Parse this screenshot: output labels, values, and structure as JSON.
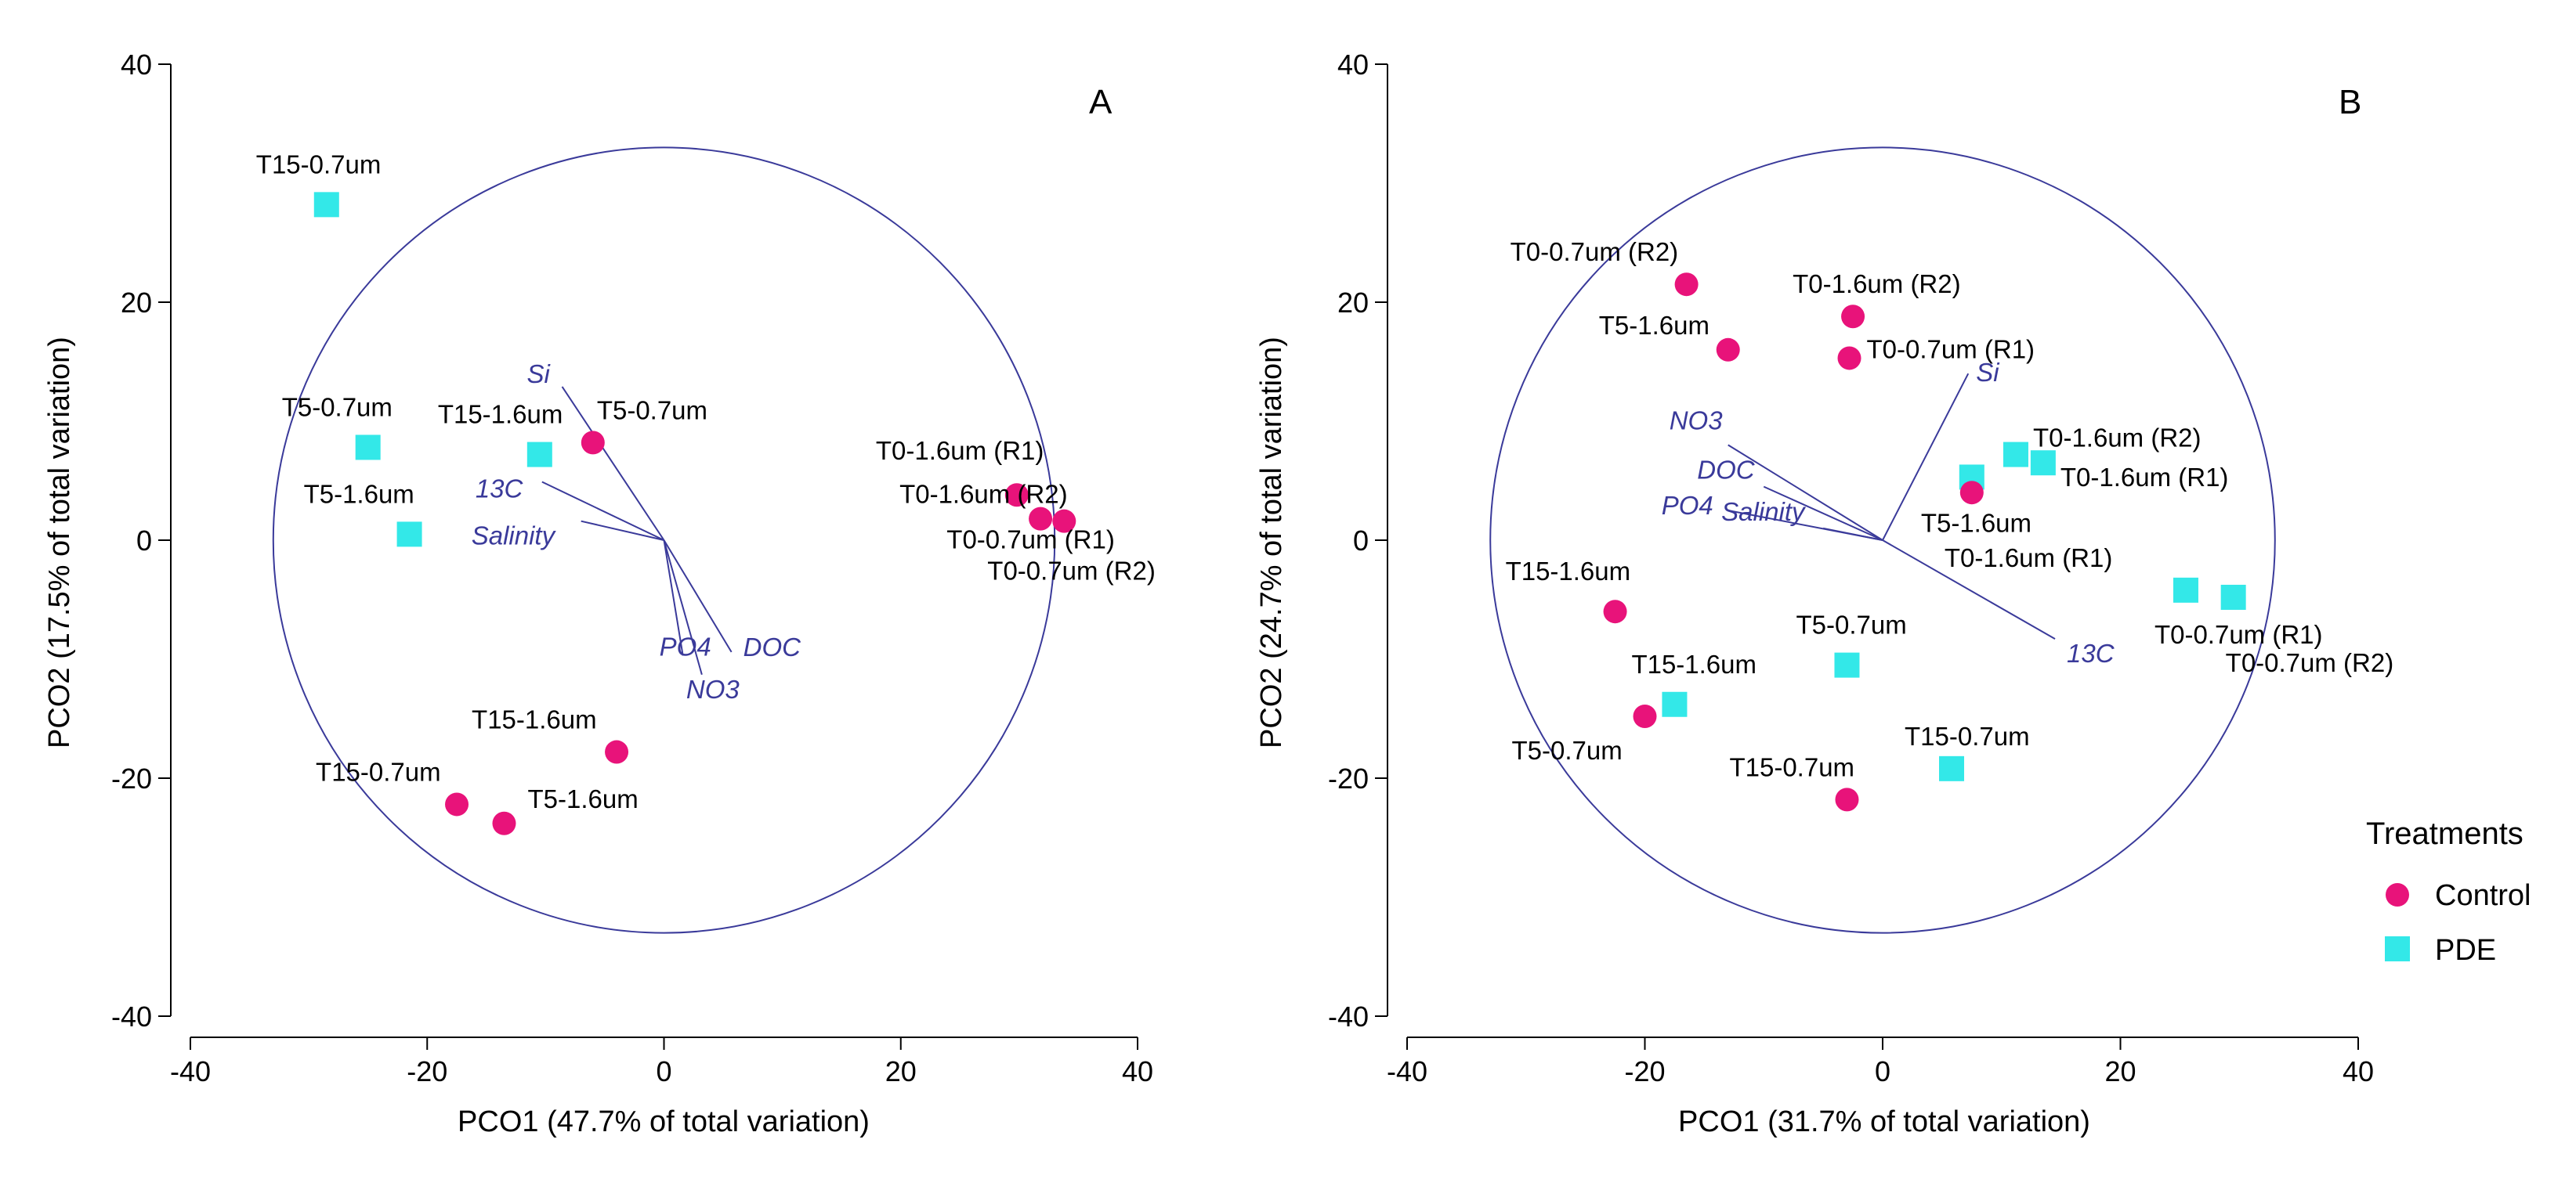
{
  "colors": {
    "control": "#e8137a",
    "pde": "#33e8e8",
    "vector": "#3a3a9a",
    "circle": "#3a3a9a"
  },
  "legend": {
    "title": "Treatments",
    "items": [
      {
        "label": "Control",
        "shape": "circle",
        "color": "#e8137a"
      },
      {
        "label": "PDE",
        "shape": "square",
        "color": "#33e8e8"
      }
    ]
  },
  "chart_data": [
    {
      "type": "scatter",
      "panel_label": "A",
      "xlabel": "PCO1 (47.7% of total variation)",
      "ylabel": "PCO2 (17.5% of total variation)",
      "xlim": [
        -40,
        40
      ],
      "ylim": [
        -40,
        40
      ],
      "xticks": [
        -40,
        -20,
        0,
        20,
        40
      ],
      "yticks": [
        -40,
        -20,
        0,
        20,
        40
      ],
      "circle_radius": 33,
      "points": [
        {
          "label": "T15-0.7um",
          "x": -28.5,
          "y": 28.2,
          "group": "PDE"
        },
        {
          "label": "T5-0.7um",
          "x": -25,
          "y": 7.8,
          "group": "PDE"
        },
        {
          "label": "T5-1.6um",
          "x": -21.5,
          "y": 0.5,
          "group": "PDE"
        },
        {
          "label": "T15-1.6um",
          "x": -10.5,
          "y": 7.2,
          "group": "PDE"
        },
        {
          "label": "T5-0.7um",
          "x": -6,
          "y": 8.2,
          "group": "Control"
        },
        {
          "label": "T0-1.6um (R1)",
          "x": 29.8,
          "y": 3.8,
          "group": "Control"
        },
        {
          "label": "T0-1.6um (R2)",
          "x": 31.8,
          "y": 1.8,
          "group": "Control"
        },
        {
          "label": "T0-0.7um (R1)",
          "x": 33.8,
          "y": 1.6,
          "group": "Control"
        },
        {
          "label": "T0-0.7um (R2)",
          "x": 33.8,
          "y": 1.6,
          "group": "Control",
          "hidden_marker": true
        },
        {
          "label": "T15-1.6um",
          "x": -4,
          "y": -17.8,
          "group": "Control"
        },
        {
          "label": "T15-0.7um",
          "x": -17.5,
          "y": -22.2,
          "group": "Control"
        },
        {
          "label": "T5-1.6um",
          "x": -13.5,
          "y": -23.8,
          "group": "Control"
        }
      ],
      "vectors": [
        {
          "label": "Si",
          "x": -8.6,
          "y": 12.9
        },
        {
          "label": "13C",
          "x": -10.3,
          "y": 4.9
        },
        {
          "label": "Salinity",
          "x": -7,
          "y": 1.6
        },
        {
          "label": "DOC",
          "x": 5.7,
          "y": -9.4
        },
        {
          "label": "NO3",
          "x": 3.2,
          "y": -11.3
        },
        {
          "label": "PO4",
          "x": 1.6,
          "y": -9.7
        }
      ]
    },
    {
      "type": "scatter",
      "panel_label": "B",
      "xlabel": "PCO1 (31.7% of total variation)",
      "ylabel": "PCO2 (24.7% of total variation)",
      "xlim": [
        -40,
        40
      ],
      "ylim": [
        -40,
        40
      ],
      "xticks": [
        -40,
        -20,
        0,
        20,
        40
      ],
      "yticks": [
        -40,
        -20,
        0,
        20,
        40
      ],
      "circle_radius": 33,
      "points": [
        {
          "label": "T0-0.7um (R2)",
          "x": -16.5,
          "y": 21.5,
          "group": "Control"
        },
        {
          "label": "T5-1.6um",
          "x": -13,
          "y": 16,
          "group": "Control"
        },
        {
          "label": "T0-1.6um (R2)",
          "x": -2.5,
          "y": 18.8,
          "group": "Control"
        },
        {
          "label": "T0-0.7um (R1)",
          "x": -2.8,
          "y": 15.3,
          "group": "Control"
        },
        {
          "label": "T0-1.6um (R2)",
          "x": 11.2,
          "y": 7.2,
          "group": "PDE"
        },
        {
          "label": "T0-1.6um (R1)",
          "x": 13.5,
          "y": 6.5,
          "group": "PDE"
        },
        {
          "label": "T5-1.6um",
          "x": 7.5,
          "y": 5.3,
          "group": "PDE"
        },
        {
          "label": "T0-1.6um (R1)",
          "x": 7.5,
          "y": 4,
          "group": "Control"
        },
        {
          "label": "T15-1.6um",
          "x": -22.5,
          "y": -6,
          "group": "Control"
        },
        {
          "label": "T0-0.7um (R1)",
          "x": 25.5,
          "y": -4.2,
          "group": "PDE"
        },
        {
          "label": "T0-0.7um (R2)",
          "x": 29.5,
          "y": -4.8,
          "group": "PDE"
        },
        {
          "label": "T5-0.7um",
          "x": -3,
          "y": -10.5,
          "group": "PDE"
        },
        {
          "label": "T15-1.6um",
          "x": -17.5,
          "y": -13.8,
          "group": "PDE"
        },
        {
          "label": "T5-0.7um",
          "x": -20,
          "y": -14.8,
          "group": "Control"
        },
        {
          "label": "T15-0.7um",
          "x": 5.8,
          "y": -19.2,
          "group": "PDE"
        },
        {
          "label": "T15-0.7um",
          "x": -3,
          "y": -21.8,
          "group": "Control"
        }
      ],
      "vectors": [
        {
          "label": "Si",
          "x": 7.2,
          "y": 14
        },
        {
          "label": "NO3",
          "x": -13,
          "y": 8
        },
        {
          "label": "DOC",
          "x": -10,
          "y": 4.5
        },
        {
          "label": "PO4",
          "x": -13,
          "y": 2.5
        },
        {
          "label": "Salinity",
          "x": -5,
          "y": 1
        },
        {
          "label": "13C",
          "x": 14.5,
          "y": -8.3
        }
      ]
    }
  ]
}
